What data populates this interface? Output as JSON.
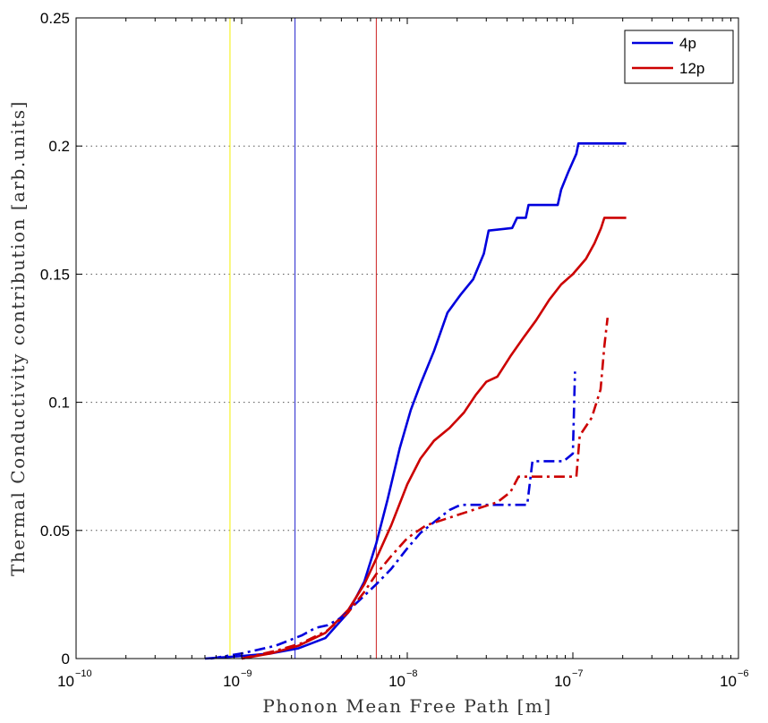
{
  "chart_data": {
    "type": "line",
    "title": "",
    "xlabel": "Phonon Mean Free Path [m]",
    "ylabel": "Thermal Conductivity contribution [arb.units]",
    "xscale": "log",
    "xlim": [
      1e-10,
      1e-06
    ],
    "ylim": [
      0,
      0.25
    ],
    "x_ticks": [
      {
        "base": "10",
        "exp": "−10",
        "value": 1e-10
      },
      {
        "base": "10",
        "exp": "−9",
        "value": 1e-09
      },
      {
        "base": "10",
        "exp": "−8",
        "value": 1e-08
      },
      {
        "base": "10",
        "exp": "−7",
        "value": 1e-07
      },
      {
        "base": "10",
        "exp": "−6",
        "value": 1e-06
      }
    ],
    "y_ticks": [
      {
        "label": "0",
        "value": 0
      },
      {
        "label": "0.05",
        "value": 0.05
      },
      {
        "label": "0.1",
        "value": 0.1
      },
      {
        "label": "0.15",
        "value": 0.15
      },
      {
        "label": "0.2",
        "value": 0.2
      },
      {
        "label": "0.25",
        "value": 0.25
      }
    ],
    "grid": "horizontal dotted",
    "legend_position": "top-right",
    "legend": [
      {
        "label": "4p",
        "color": "#0000dd"
      },
      {
        "label": "12p",
        "color": "#cc0000"
      }
    ],
    "vertical_lines": [
      {
        "x": 8.5e-10,
        "color": "#f5f000"
      },
      {
        "x": 2.1e-09,
        "color": "#2222cc"
      },
      {
        "x": 6.5e-09,
        "color": "#cc2222"
      }
    ],
    "series": [
      {
        "name": "4p",
        "color": "#0000dd",
        "style": "solid",
        "points": [
          [
            6e-10,
            0.0
          ],
          [
            1e-09,
            0.001
          ],
          [
            1.5e-09,
            0.002
          ],
          [
            2.2e-09,
            0.004
          ],
          [
            3.2e-09,
            0.008
          ],
          [
            4.4e-09,
            0.018
          ],
          [
            5.5e-09,
            0.03
          ],
          [
            6.5e-09,
            0.045
          ],
          [
            7.6e-09,
            0.062
          ],
          [
            9e-09,
            0.082
          ],
          [
            1.05e-08,
            0.097
          ],
          [
            1.2e-08,
            0.107
          ],
          [
            1.45e-08,
            0.12
          ],
          [
            1.75e-08,
            0.135
          ],
          [
            2.1e-08,
            0.142
          ],
          [
            2.5e-08,
            0.148
          ],
          [
            2.9e-08,
            0.158
          ],
          [
            3.1e-08,
            0.167
          ],
          [
            4.3e-08,
            0.168
          ],
          [
            4.6e-08,
            0.172
          ],
          [
            5.2e-08,
            0.172
          ],
          [
            5.4e-08,
            0.177
          ],
          [
            8.1e-08,
            0.177
          ],
          [
            8.5e-08,
            0.183
          ],
          [
            9.4e-08,
            0.19
          ],
          [
            1.05e-07,
            0.197
          ],
          [
            1.08e-07,
            0.201
          ],
          [
            2.1e-07,
            0.201
          ]
        ]
      },
      {
        "name": "12p",
        "color": "#cc0000",
        "style": "solid",
        "points": [
          [
            1e-09,
            0.0
          ],
          [
            1.5e-09,
            0.002
          ],
          [
            2.2e-09,
            0.005
          ],
          [
            3.2e-09,
            0.01
          ],
          [
            4.4e-09,
            0.019
          ],
          [
            5.5e-09,
            0.029
          ],
          [
            6.5e-09,
            0.039
          ],
          [
            8e-09,
            0.052
          ],
          [
            1e-08,
            0.068
          ],
          [
            1.2e-08,
            0.078
          ],
          [
            1.45e-08,
            0.085
          ],
          [
            1.8e-08,
            0.09
          ],
          [
            2.2e-08,
            0.096
          ],
          [
            2.6e-08,
            0.103
          ],
          [
            3e-08,
            0.108
          ],
          [
            3.5e-08,
            0.11
          ],
          [
            4.2e-08,
            0.118
          ],
          [
            5e-08,
            0.125
          ],
          [
            6e-08,
            0.132
          ],
          [
            7.2e-08,
            0.14
          ],
          [
            8.5e-08,
            0.146
          ],
          [
            1e-07,
            0.15
          ],
          [
            1.2e-07,
            0.156
          ],
          [
            1.35e-07,
            0.162
          ],
          [
            1.48e-07,
            0.168
          ],
          [
            1.55e-07,
            0.172
          ],
          [
            2.1e-07,
            0.172
          ]
        ]
      },
      {
        "name": "4p (dash-dot)",
        "color": "#0000dd",
        "style": "dashdot",
        "points": [
          [
            6.5e-10,
            0.0
          ],
          [
            1e-09,
            0.002
          ],
          [
            1.6e-09,
            0.005
          ],
          [
            2.3e-09,
            0.009
          ],
          [
            2.8e-09,
            0.012
          ],
          [
            3.3e-09,
            0.013
          ],
          [
            4e-09,
            0.016
          ],
          [
            5e-09,
            0.022
          ],
          [
            6.5e-09,
            0.029
          ],
          [
            8e-09,
            0.035
          ],
          [
            1e-08,
            0.043
          ],
          [
            1.2e-08,
            0.049
          ],
          [
            1.5e-08,
            0.054
          ],
          [
            1.8e-08,
            0.058
          ],
          [
            2.1e-08,
            0.06
          ],
          [
            5.3e-08,
            0.06
          ],
          [
            5.7e-08,
            0.077
          ],
          [
            8.8e-08,
            0.077
          ],
          [
            1e-07,
            0.08
          ],
          [
            1.03e-07,
            0.112
          ]
        ]
      },
      {
        "name": "12p (dash-dot)",
        "color": "#cc0000",
        "style": "dashdot",
        "points": [
          [
            1e-09,
            0.0
          ],
          [
            1.6e-09,
            0.003
          ],
          [
            2.3e-09,
            0.006
          ],
          [
            3.3e-09,
            0.011
          ],
          [
            4.4e-09,
            0.018
          ],
          [
            5.5e-09,
            0.026
          ],
          [
            6.5e-09,
            0.033
          ],
          [
            8e-09,
            0.04
          ],
          [
            1e-08,
            0.047
          ],
          [
            1.3e-08,
            0.052
          ],
          [
            1.8e-08,
            0.055
          ],
          [
            2.5e-08,
            0.058
          ],
          [
            3.5e-08,
            0.061
          ],
          [
            4.2e-08,
            0.065
          ],
          [
            4.7e-08,
            0.071
          ],
          [
            1.05e-07,
            0.071
          ],
          [
            1.1e-07,
            0.087
          ],
          [
            1.3e-07,
            0.094
          ],
          [
            1.47e-07,
            0.105
          ],
          [
            1.55e-07,
            0.122
          ],
          [
            1.62e-07,
            0.133
          ]
        ]
      }
    ]
  }
}
